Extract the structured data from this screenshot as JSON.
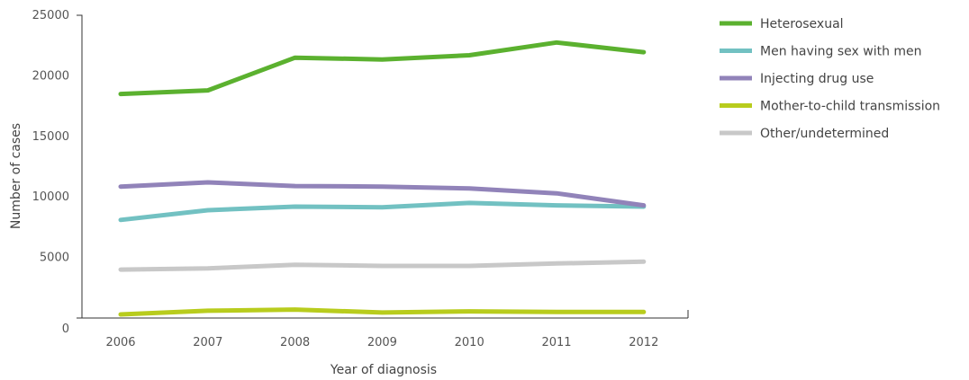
{
  "chart_data": {
    "type": "line",
    "xlabel": "Year of diagnosis",
    "ylabel": "Number of cases",
    "ylim": [
      0,
      25000
    ],
    "y_ticks": [
      "0",
      "5000",
      "10000",
      "15000",
      "20000",
      "25000"
    ],
    "x": [
      "2006",
      "2007",
      "2008",
      "2009",
      "2010",
      "2011",
      "2012"
    ],
    "grid": false,
    "legend_position": "right",
    "series": [
      {
        "name": "Heterosexual",
        "color": "#5bb12f",
        "values": [
          18500,
          18800,
          21500,
          21350,
          21700,
          22750,
          21950
        ]
      },
      {
        "name": "Men having sex with men",
        "color": "#72c1c2",
        "values": [
          8100,
          8900,
          9200,
          9150,
          9500,
          9300,
          9200
        ]
      },
      {
        "name": "Injecting drug use",
        "color": "#9183b9",
        "values": [
          10850,
          11200,
          10900,
          10850,
          10700,
          10300,
          9300
        ]
      },
      {
        "name": "Mother-to-child transmission",
        "color": "#b8cc1d",
        "values": [
          300,
          600,
          700,
          450,
          550,
          500,
          500
        ]
      },
      {
        "name": "Other/undetermined",
        "color": "#c8c8c8",
        "values": [
          4000,
          4100,
          4400,
          4300,
          4300,
          4500,
          4650
        ]
      }
    ]
  }
}
